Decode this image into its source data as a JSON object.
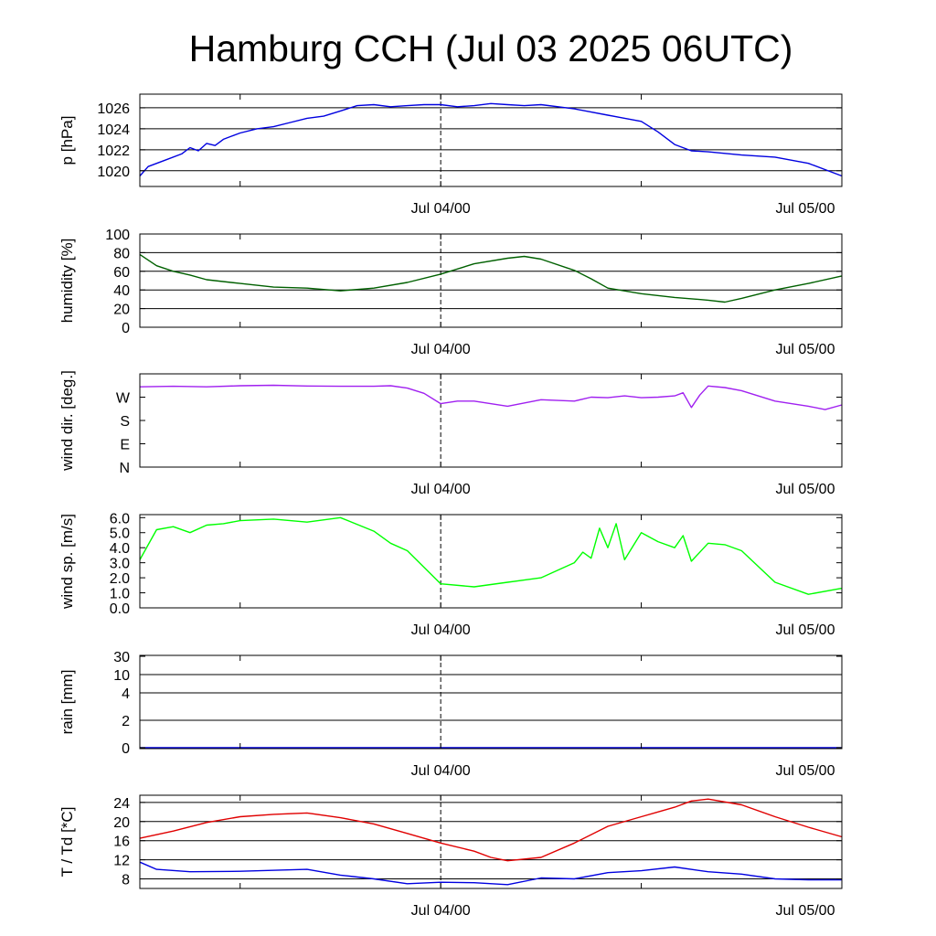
{
  "title": "Hamburg CCH (Jul 03 2025 06UTC)",
  "time_axis": {
    "start": "2025-07-03 06:00 UTC",
    "end": "2025-07-05 00:00 UTC",
    "labels": [
      {
        "time": "2025-07-04 00:00 UTC",
        "text": "Jul 04/00"
      },
      {
        "time": "2025-07-05 00:00 UTC",
        "text": "Jul 05/00"
      }
    ],
    "minor_ticks": [
      "2025-07-03 12:00 UTC",
      "2025-07-04 00:00 UTC",
      "2025-07-04 12:00 UTC"
    ],
    "dashed_line": "2025-07-04 00:00 UTC"
  },
  "chart_data": [
    {
      "type": "line",
      "ylabel": "p [hPa]",
      "ylim": [
        1018.5,
        1027.3
      ],
      "yticks": [
        {
          "v": 1020,
          "t": "1020"
        },
        {
          "v": 1022,
          "t": "1022"
        },
        {
          "v": 1024,
          "t": "1024"
        },
        {
          "v": 1026,
          "t": "1026"
        }
      ],
      "grid": true,
      "series": [
        {
          "color": "#0000e0",
          "x": [
            "2025-07-03 06:00 UTC",
            "2025-07-03 06:30 UTC",
            "2025-07-03 07:30 UTC",
            "2025-07-03 08:30 UTC",
            "2025-07-03 09:00 UTC",
            "2025-07-03 09:30 UTC",
            "2025-07-03 10:00 UTC",
            "2025-07-03 10:30 UTC",
            "2025-07-03 11:00 UTC",
            "2025-07-03 11:30 UTC",
            "2025-07-03 12:00 UTC",
            "2025-07-03 13:00 UTC",
            "2025-07-03 14:00 UTC",
            "2025-07-03 15:00 UTC",
            "2025-07-03 16:00 UTC",
            "2025-07-03 17:00 UTC",
            "2025-07-03 18:00 UTC",
            "2025-07-03 19:00 UTC",
            "2025-07-03 20:00 UTC",
            "2025-07-03 21:00 UTC",
            "2025-07-03 22:00 UTC",
            "2025-07-03 23:00 UTC",
            "2025-07-04 00:00 UTC",
            "2025-07-04 01:00 UTC",
            "2025-07-04 02:00 UTC",
            "2025-07-04 03:00 UTC",
            "2025-07-04 04:00 UTC",
            "2025-07-04 05:00 UTC",
            "2025-07-04 06:00 UTC",
            "2025-07-04 08:00 UTC",
            "2025-07-04 10:00 UTC",
            "2025-07-04 12:00 UTC",
            "2025-07-04 13:00 UTC",
            "2025-07-04 14:00 UTC",
            "2025-07-04 15:00 UTC",
            "2025-07-04 16:00 UTC",
            "2025-07-04 18:00 UTC",
            "2025-07-04 20:00 UTC",
            "2025-07-04 22:00 UTC",
            "2025-07-05 00:00 UTC"
          ],
          "y": [
            1019.5,
            1020.4,
            1021.0,
            1021.6,
            1022.2,
            1021.9,
            1022.6,
            1022.4,
            1023.0,
            1023.3,
            1023.6,
            1024.0,
            1024.2,
            1024.6,
            1025.0,
            1025.2,
            1025.7,
            1026.2,
            1026.3,
            1026.1,
            1026.2,
            1026.3,
            1026.3,
            1026.1,
            1026.2,
            1026.4,
            1026.3,
            1026.2,
            1026.3,
            1025.9,
            1025.3,
            1024.7,
            1023.7,
            1022.5,
            1021.9,
            1021.8,
            1021.5,
            1021.3,
            1020.7,
            1019.5
          ]
        }
      ]
    },
    {
      "type": "line",
      "ylabel": "humidity [%]",
      "ylim": [
        0,
        100
      ],
      "yticks": [
        {
          "v": 0,
          "t": "0"
        },
        {
          "v": 20,
          "t": "20"
        },
        {
          "v": 40,
          "t": "40"
        },
        {
          "v": 60,
          "t": "60"
        },
        {
          "v": 80,
          "t": "80"
        },
        {
          "v": 100,
          "t": "100"
        }
      ],
      "grid": true,
      "series": [
        {
          "color": "#006000",
          "x": [
            "2025-07-03 06:00 UTC",
            "2025-07-03 07:00 UTC",
            "2025-07-03 08:00 UTC",
            "2025-07-03 09:00 UTC",
            "2025-07-03 10:00 UTC",
            "2025-07-03 12:00 UTC",
            "2025-07-03 14:00 UTC",
            "2025-07-03 16:00 UTC",
            "2025-07-03 18:00 UTC",
            "2025-07-03 20:00 UTC",
            "2025-07-03 22:00 UTC",
            "2025-07-04 00:00 UTC",
            "2025-07-04 02:00 UTC",
            "2025-07-04 04:00 UTC",
            "2025-07-04 05:00 UTC",
            "2025-07-04 06:00 UTC",
            "2025-07-04 08:00 UTC",
            "2025-07-04 09:00 UTC",
            "2025-07-04 10:00 UTC",
            "2025-07-04 12:00 UTC",
            "2025-07-04 14:00 UTC",
            "2025-07-04 16:00 UTC",
            "2025-07-04 17:00 UTC",
            "2025-07-04 18:00 UTC",
            "2025-07-04 20:00 UTC",
            "2025-07-04 22:00 UTC",
            "2025-07-05 00:00 UTC"
          ],
          "y": [
            78,
            66,
            60,
            56,
            51,
            47,
            43,
            42,
            39,
            42,
            48,
            57,
            68,
            74,
            76,
            73,
            61,
            52,
            42,
            36,
            32,
            29,
            27,
            31,
            40,
            47,
            55
          ]
        }
      ]
    },
    {
      "type": "line",
      "ylabel": "wind dir. [deg.]",
      "ylim": [
        0,
        360
      ],
      "yticks": [
        {
          "v": 0,
          "t": "N"
        },
        {
          "v": 90,
          "t": "E"
        },
        {
          "v": 180,
          "t": "S"
        },
        {
          "v": 270,
          "t": "W"
        }
      ],
      "grid": false,
      "series": [
        {
          "color": "#a020f0",
          "x": [
            "2025-07-03 06:00 UTC",
            "2025-07-03 08:00 UTC",
            "2025-07-03 10:00 UTC",
            "2025-07-03 12:00 UTC",
            "2025-07-03 14:00 UTC",
            "2025-07-03 16:00 UTC",
            "2025-07-03 18:00 UTC",
            "2025-07-03 20:00 UTC",
            "2025-07-03 21:00 UTC",
            "2025-07-03 22:00 UTC",
            "2025-07-03 23:00 UTC",
            "2025-07-04 00:00 UTC",
            "2025-07-04 01:00 UTC",
            "2025-07-04 02:00 UTC",
            "2025-07-04 04:00 UTC",
            "2025-07-04 06:00 UTC",
            "2025-07-04 08:00 UTC",
            "2025-07-04 09:00 UTC",
            "2025-07-04 10:00 UTC",
            "2025-07-04 11:00 UTC",
            "2025-07-04 12:00 UTC",
            "2025-07-04 13:00 UTC",
            "2025-07-04 14:00 UTC",
            "2025-07-04 14:30 UTC",
            "2025-07-04 15:00 UTC",
            "2025-07-04 15:30 UTC",
            "2025-07-04 16:00 UTC",
            "2025-07-04 17:00 UTC",
            "2025-07-04 18:00 UTC",
            "2025-07-04 20:00 UTC",
            "2025-07-04 22:00 UTC",
            "2025-07-04 23:00 UTC",
            "2025-07-05 00:00 UTC"
          ],
          "y": [
            310,
            312,
            310,
            314,
            316,
            313,
            312,
            312,
            314,
            305,
            285,
            245,
            255,
            255,
            235,
            260,
            255,
            270,
            268,
            275,
            268,
            270,
            275,
            287,
            230,
            278,
            313,
            307,
            295,
            255,
            235,
            222,
            240
          ]
        }
      ]
    },
    {
      "type": "line",
      "ylabel": "wind sp. [m/s]",
      "ylim": [
        0,
        6.2
      ],
      "yticks": [
        {
          "v": 0,
          "t": "0.0"
        },
        {
          "v": 1,
          "t": "1.0"
        },
        {
          "v": 2,
          "t": "2.0"
        },
        {
          "v": 3,
          "t": "3.0"
        },
        {
          "v": 4,
          "t": "4.0"
        },
        {
          "v": 5,
          "t": "5.0"
        },
        {
          "v": 6,
          "t": "6.0"
        }
      ],
      "grid": false,
      "series": [
        {
          "color": "#00ff00",
          "x": [
            "2025-07-03 06:00 UTC",
            "2025-07-03 07:00 UTC",
            "2025-07-03 08:00 UTC",
            "2025-07-03 09:00 UTC",
            "2025-07-03 10:00 UTC",
            "2025-07-03 11:00 UTC",
            "2025-07-03 12:00 UTC",
            "2025-07-03 14:00 UTC",
            "2025-07-03 16:00 UTC",
            "2025-07-03 18:00 UTC",
            "2025-07-03 20:00 UTC",
            "2025-07-03 21:00 UTC",
            "2025-07-03 22:00 UTC",
            "2025-07-04 00:00 UTC",
            "2025-07-04 02:00 UTC",
            "2025-07-04 04:00 UTC",
            "2025-07-04 06:00 UTC",
            "2025-07-04 07:00 UTC",
            "2025-07-04 08:00 UTC",
            "2025-07-04 08:30 UTC",
            "2025-07-04 09:00 UTC",
            "2025-07-04 09:30 UTC",
            "2025-07-04 10:00 UTC",
            "2025-07-04 10:30 UTC",
            "2025-07-04 11:00 UTC",
            "2025-07-04 12:00 UTC",
            "2025-07-04 13:00 UTC",
            "2025-07-04 14:00 UTC",
            "2025-07-04 14:30 UTC",
            "2025-07-04 15:00 UTC",
            "2025-07-04 16:00 UTC",
            "2025-07-04 17:00 UTC",
            "2025-07-04 18:00 UTC",
            "2025-07-04 20:00 UTC",
            "2025-07-04 22:00 UTC",
            "2025-07-05 00:00 UTC"
          ],
          "y": [
            3.2,
            5.2,
            5.4,
            5.0,
            5.5,
            5.6,
            5.8,
            5.9,
            5.7,
            6.0,
            5.1,
            4.3,
            3.8,
            1.6,
            1.4,
            1.7,
            2.0,
            2.5,
            3.0,
            3.7,
            3.3,
            5.3,
            4.0,
            5.6,
            3.2,
            5.0,
            4.4,
            4.0,
            4.8,
            3.1,
            4.3,
            4.2,
            3.8,
            1.7,
            0.9,
            1.3
          ]
        }
      ]
    },
    {
      "type": "line",
      "ylabel": "rain [mm]",
      "scale": "nonlinear",
      "ylim": [
        0,
        30
      ],
      "yticks": [
        {
          "v": 0,
          "t": "0"
        },
        {
          "v": 2,
          "t": "2"
        },
        {
          "v": 4,
          "t": "4"
        },
        {
          "v": 10,
          "t": "10"
        },
        {
          "v": 30,
          "t": "30"
        }
      ],
      "grid": true,
      "series": [
        {
          "color": "#0000e0",
          "x": [
            "2025-07-03 06:00 UTC",
            "2025-07-05 00:00 UTC"
          ],
          "y": [
            0,
            0
          ]
        }
      ]
    },
    {
      "type": "line",
      "ylabel": "T / Td [*C]",
      "ylim": [
        6.0,
        25.5
      ],
      "yticks": [
        {
          "v": 8,
          "t": "8"
        },
        {
          "v": 12,
          "t": "12"
        },
        {
          "v": 16,
          "t": "16"
        },
        {
          "v": 20,
          "t": "20"
        },
        {
          "v": 24,
          "t": "24"
        }
      ],
      "grid": true,
      "series": [
        {
          "color": "#e00000",
          "x": [
            "2025-07-03 06:00 UTC",
            "2025-07-03 08:00 UTC",
            "2025-07-03 10:00 UTC",
            "2025-07-03 12:00 UTC",
            "2025-07-03 14:00 UTC",
            "2025-07-03 16:00 UTC",
            "2025-07-03 18:00 UTC",
            "2025-07-03 20:00 UTC",
            "2025-07-03 22:00 UTC",
            "2025-07-04 00:00 UTC",
            "2025-07-04 02:00 UTC",
            "2025-07-04 03:00 UTC",
            "2025-07-04 04:00 UTC",
            "2025-07-04 06:00 UTC",
            "2025-07-04 08:00 UTC",
            "2025-07-04 10:00 UTC",
            "2025-07-04 12:00 UTC",
            "2025-07-04 14:00 UTC",
            "2025-07-04 15:00 UTC",
            "2025-07-04 16:00 UTC",
            "2025-07-04 18:00 UTC",
            "2025-07-04 20:00 UTC",
            "2025-07-04 22:00 UTC",
            "2025-07-05 00:00 UTC"
          ],
          "y": [
            16.5,
            18.0,
            19.8,
            21.0,
            21.5,
            21.8,
            20.8,
            19.5,
            17.5,
            15.5,
            13.8,
            12.5,
            11.8,
            12.5,
            15.5,
            19.0,
            21.0,
            23.0,
            24.3,
            24.7,
            23.5,
            21.0,
            18.8,
            16.8
          ]
        },
        {
          "color": "#0000e0",
          "x": [
            "2025-07-03 06:00 UTC",
            "2025-07-03 07:00 UTC",
            "2025-07-03 09:00 UTC",
            "2025-07-03 12:00 UTC",
            "2025-07-03 16:00 UTC",
            "2025-07-03 18:00 UTC",
            "2025-07-03 20:00 UTC",
            "2025-07-03 22:00 UTC",
            "2025-07-04 00:00 UTC",
            "2025-07-04 02:00 UTC",
            "2025-07-04 04:00 UTC",
            "2025-07-04 06:00 UTC",
            "2025-07-04 08:00 UTC",
            "2025-07-04 10:00 UTC",
            "2025-07-04 12:00 UTC",
            "2025-07-04 14:00 UTC",
            "2025-07-04 16:00 UTC",
            "2025-07-04 18:00 UTC",
            "2025-07-04 20:00 UTC",
            "2025-07-04 22:00 UTC",
            "2025-07-05 00:00 UTC"
          ],
          "y": [
            11.5,
            10.0,
            9.5,
            9.6,
            10.0,
            8.8,
            8.0,
            7.0,
            7.3,
            7.2,
            6.8,
            8.2,
            8.0,
            9.3,
            9.7,
            10.5,
            9.5,
            9.0,
            8.0,
            7.8,
            7.8
          ]
        }
      ]
    }
  ]
}
